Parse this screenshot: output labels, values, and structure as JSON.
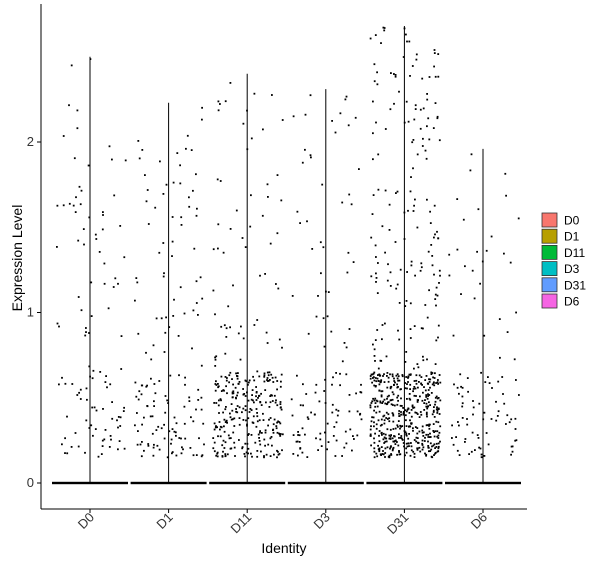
{
  "chart_data": {
    "type": "scatter",
    "subtype": "violin-jitter",
    "xlabel": "Identity",
    "ylabel": "Expression Level",
    "categories": [
      "D0",
      "D1",
      "D11",
      "D3",
      "D31",
      "D6"
    ],
    "ylim": [
      -0.15,
      2.8
    ],
    "yticks": [
      0,
      1,
      2
    ],
    "grid": false,
    "legend": {
      "placement": "right",
      "entries": [
        {
          "name": "D0",
          "color": "#F8766D"
        },
        {
          "name": "D1",
          "color": "#B79F00"
        },
        {
          "name": "D11",
          "color": "#00BA38"
        },
        {
          "name": "D3",
          "color": "#00BFC4"
        },
        {
          "name": "D31",
          "color": "#619CFF"
        },
        {
          "name": "D6",
          "color": "#F564E3"
        }
      ]
    },
    "series": [
      {
        "name": "D0",
        "max": 2.5,
        "nonzero_count": 110,
        "low_density": 0.35
      },
      {
        "name": "D1",
        "max": 2.23,
        "nonzero_count": 150,
        "low_density": 0.4
      },
      {
        "name": "D11",
        "max": 2.4,
        "nonzero_count": 330,
        "low_density": 0.75
      },
      {
        "name": "D3",
        "max": 2.31,
        "nonzero_count": 120,
        "low_density": 0.55
      },
      {
        "name": "D31",
        "max": 2.68,
        "nonzero_count": 650,
        "low_density": 0.65
      },
      {
        "name": "D6",
        "max": 1.96,
        "nonzero_count": 100,
        "low_density": 0.5
      }
    ]
  }
}
